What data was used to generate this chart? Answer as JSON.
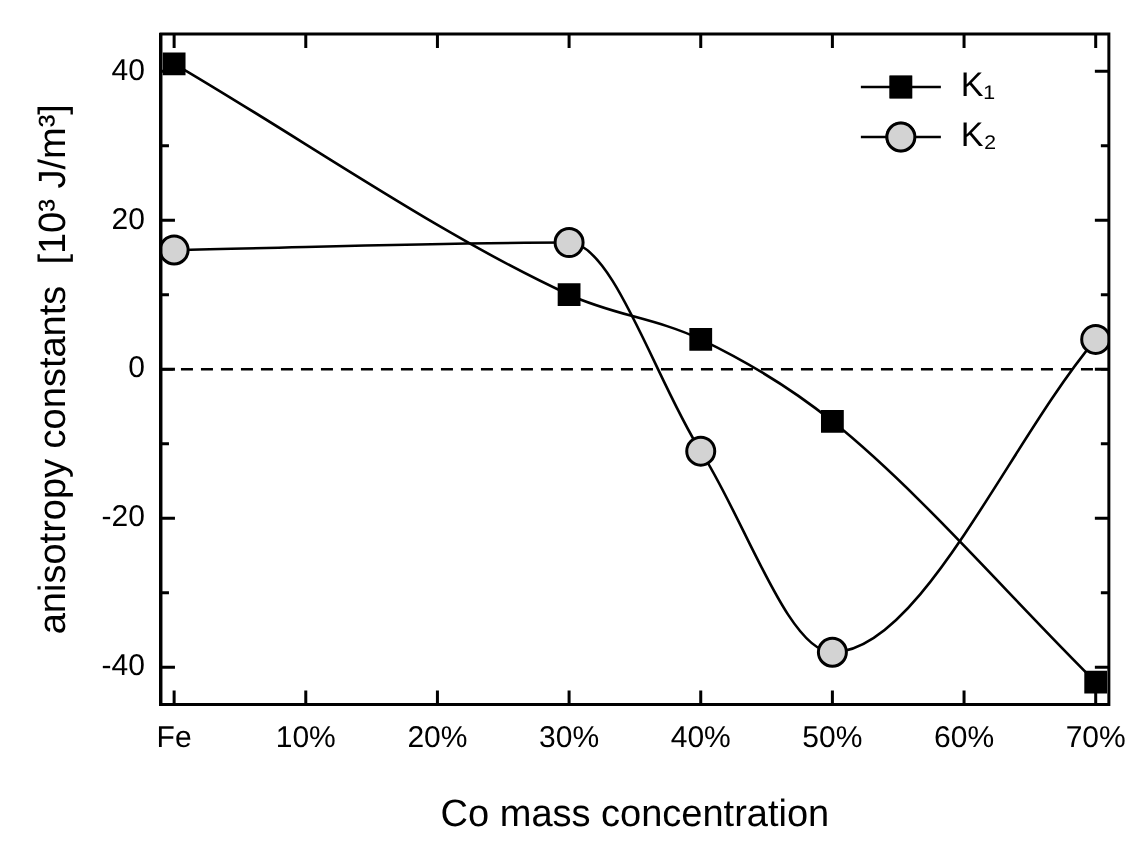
{
  "chart_data": {
    "type": "line",
    "xlabel": "Co mass concentration",
    "ylabel": "anisotropy constants  [10³ J/m³]",
    "x": [
      0,
      30,
      40,
      50,
      70
    ],
    "series": [
      {
        "name": "K₁",
        "color": "#000000",
        "marker": "square",
        "values": [
          41,
          10,
          4,
          -7,
          -42
        ]
      },
      {
        "name": "K₂",
        "color": "#000000",
        "marker": "circle",
        "values": [
          16,
          17,
          -11,
          -38,
          4
        ]
      }
    ],
    "xlim": [
      -1,
      71
    ],
    "xticks": [
      {
        "value": 0,
        "label": "Fe"
      },
      {
        "value": 10,
        "label": "10%"
      },
      {
        "value": 20,
        "label": "20%"
      },
      {
        "value": 30,
        "label": "30%"
      },
      {
        "value": 40,
        "label": "40%"
      },
      {
        "value": 50,
        "label": "50%"
      },
      {
        "value": 60,
        "label": "60%"
      },
      {
        "value": 70,
        "label": "70%"
      }
    ],
    "ylim": [
      -45,
      45
    ],
    "yticks": [
      -40,
      {
        "value": -30,
        "label": null
      },
      -20,
      {
        "value": -10,
        "label": null
      },
      0,
      {
        "value": 10,
        "label": null
      },
      20,
      {
        "value": 30,
        "label": null
      },
      40
    ],
    "ref_lines": [
      {
        "axis": "y",
        "value": 0,
        "color": "#000000",
        "line_style": "dashed"
      }
    ],
    "grid": false,
    "legend": "top right",
    "line_style": "solid"
  }
}
